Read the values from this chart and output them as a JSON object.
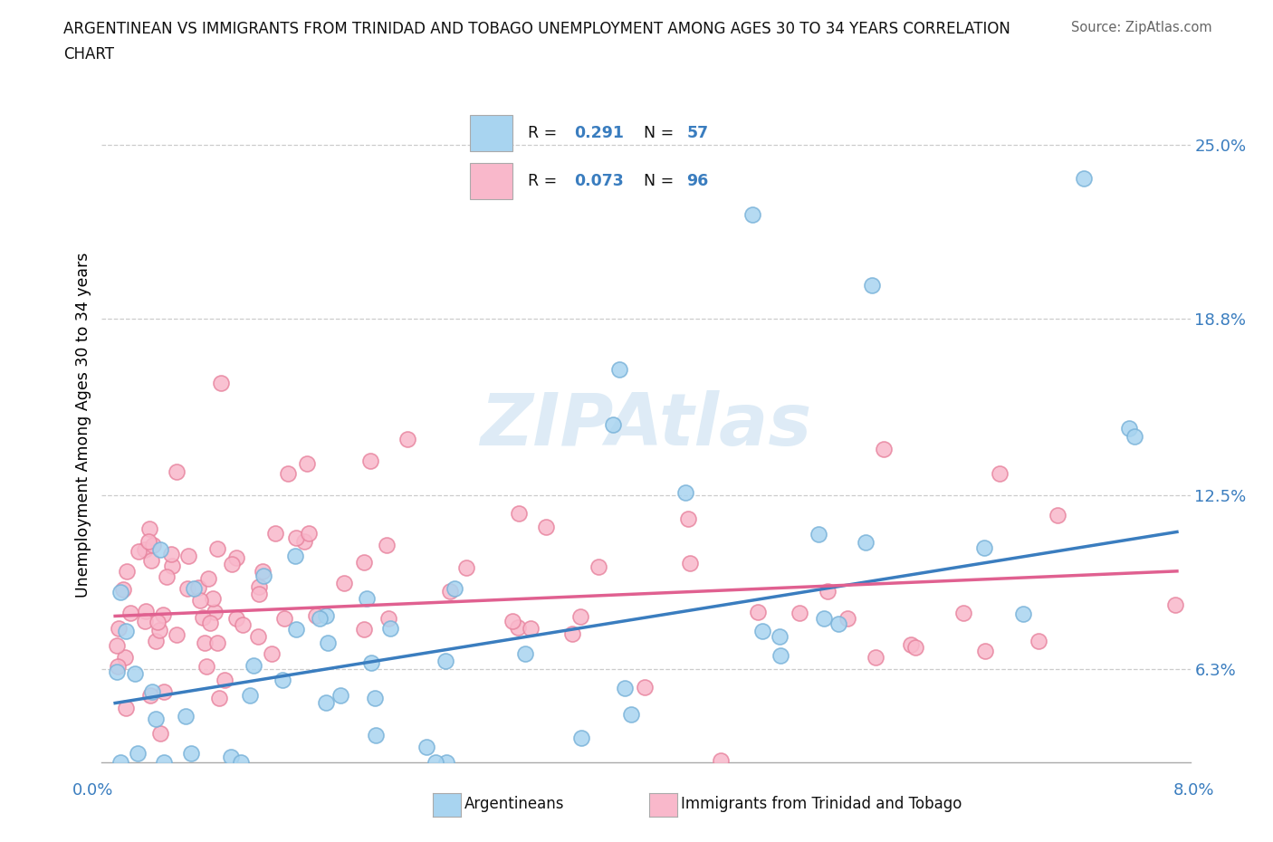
{
  "title_line1": "ARGENTINEAN VS IMMIGRANTS FROM TRINIDAD AND TOBAGO UNEMPLOYMENT AMONG AGES 30 TO 34 YEARS CORRELATION",
  "title_line2": "CHART",
  "source_text": "Source: ZipAtlas.com",
  "ylabel": "Unemployment Among Ages 30 to 34 years",
  "ytick_labels": [
    "6.3%",
    "12.5%",
    "18.8%",
    "25.0%"
  ],
  "ytick_values": [
    0.063,
    0.125,
    0.188,
    0.25
  ],
  "xmin": 0.0,
  "xmax": 0.08,
  "ymin": 0.03,
  "ymax": 0.27,
  "blue_scatter_color": "#a8d4f0",
  "blue_edge_color": "#7ab3d9",
  "pink_scatter_color": "#f9b8cb",
  "pink_edge_color": "#e886a0",
  "blue_line_color": "#3a7dbf",
  "pink_line_color": "#e06090",
  "legend_blue_R": "0.291",
  "legend_blue_N": "57",
  "legend_pink_R": "0.073",
  "legend_pink_N": "96",
  "watermark": "ZIPAtlas",
  "blue_line_x0": 0.0,
  "blue_line_y0": 0.051,
  "blue_line_x1": 0.08,
  "blue_line_y1": 0.112,
  "pink_line_x0": 0.0,
  "pink_line_y0": 0.082,
  "pink_line_x1": 0.08,
  "pink_line_y1": 0.098
}
